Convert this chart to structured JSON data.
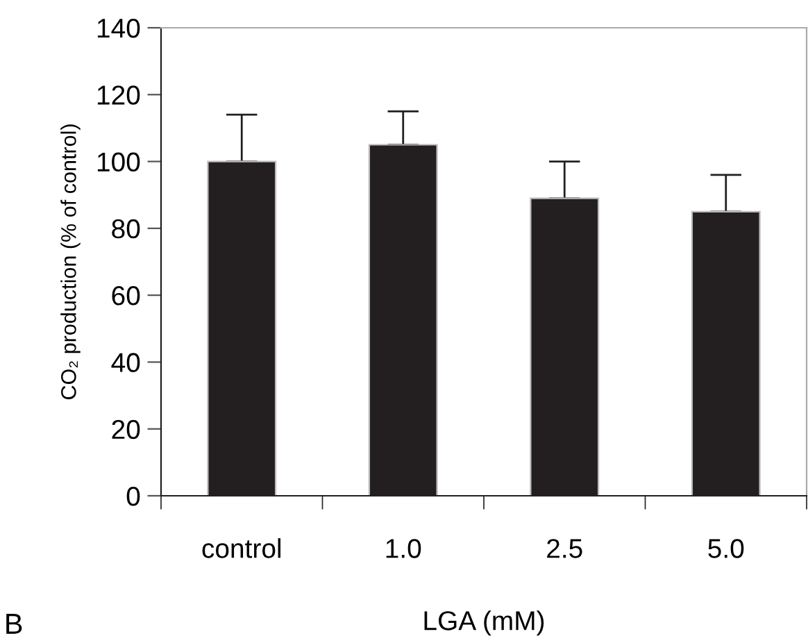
{
  "chart_data": {
    "type": "bar",
    "xlabel": "LGA (mM)",
    "ylabel": "CO₂ production (% of control)",
    "categories": [
      "control",
      "1.0",
      "2.5",
      "5.0"
    ],
    "values": [
      100,
      105,
      89,
      85
    ],
    "color": "#231f20",
    "errors": [
      [
        100,
        114
      ],
      [
        105,
        115
      ],
      [
        89,
        100
      ],
      [
        85,
        96
      ]
    ],
    "ylim": [
      0,
      140
    ],
    "yticks": [
      0,
      20,
      40,
      60,
      80,
      100,
      120,
      140
    ],
    "grid": false,
    "annotations": [
      "B"
    ]
  }
}
